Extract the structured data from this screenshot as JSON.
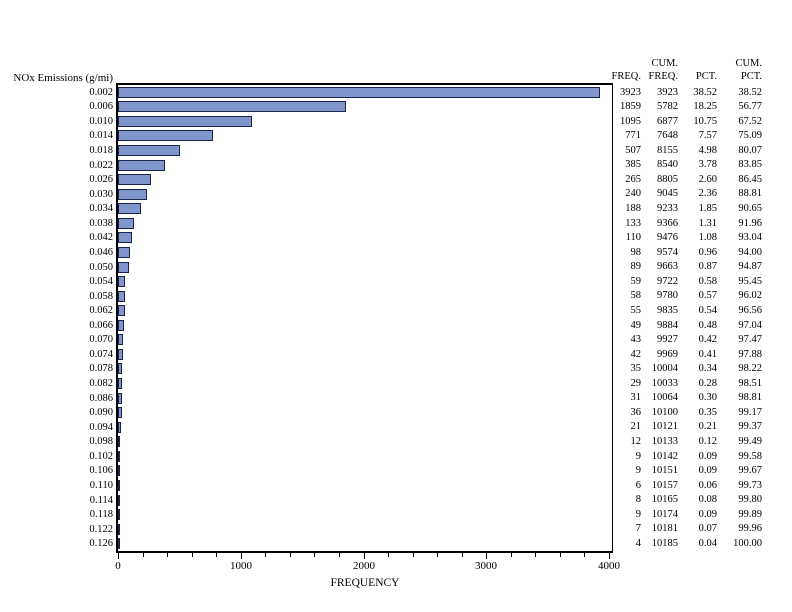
{
  "page": {
    "background": "#ffffff"
  },
  "chart_data": {
    "type": "bar",
    "orientation": "horizontal",
    "title": "",
    "ylabel": "NOx Emissions (g/mi)",
    "xlabel": "FREQUENCY",
    "categories": [
      "0.002",
      "0.006",
      "0.010",
      "0.014",
      "0.018",
      "0.022",
      "0.026",
      "0.030",
      "0.034",
      "0.038",
      "0.042",
      "0.046",
      "0.050",
      "0.054",
      "0.058",
      "0.062",
      "0.066",
      "0.070",
      "0.074",
      "0.078",
      "0.082",
      "0.086",
      "0.090",
      "0.094",
      "0.098",
      "0.102",
      "0.106",
      "0.110",
      "0.114",
      "0.118",
      "0.122",
      "0.126"
    ],
    "values": [
      3923,
      1859,
      1095,
      771,
      507,
      385,
      265,
      240,
      188,
      133,
      110,
      98,
      89,
      59,
      58,
      55,
      49,
      43,
      42,
      35,
      29,
      31,
      36,
      21,
      12,
      9,
      9,
      6,
      8,
      9,
      7,
      4
    ],
    "xlim": [
      0,
      4000
    ],
    "x_major_ticks": [
      0,
      1000,
      2000,
      3000,
      4000
    ],
    "x_minor_tick_step": 200,
    "grid": "off",
    "legend": "none",
    "bar_fill": "#8095cb",
    "bar_border": "#1b2349",
    "axis_color": "#000000"
  },
  "table": {
    "header_line1": [
      "",
      "CUM.",
      "",
      "CUM."
    ],
    "header_line2": [
      "FREQ.",
      "FREQ.",
      "PCT.",
      "PCT."
    ],
    "rows": [
      [
        "3923",
        "3923",
        "38.52",
        "38.52"
      ],
      [
        "1859",
        "5782",
        "18.25",
        "56.77"
      ],
      [
        "1095",
        "6877",
        "10.75",
        "67.52"
      ],
      [
        "771",
        "7648",
        "7.57",
        "75.09"
      ],
      [
        "507",
        "8155",
        "4.98",
        "80.07"
      ],
      [
        "385",
        "8540",
        "3.78",
        "83.85"
      ],
      [
        "265",
        "8805",
        "2.60",
        "86.45"
      ],
      [
        "240",
        "9045",
        "2.36",
        "88.81"
      ],
      [
        "188",
        "9233",
        "1.85",
        "90.65"
      ],
      [
        "133",
        "9366",
        "1.31",
        "91.96"
      ],
      [
        "110",
        "9476",
        "1.08",
        "93.04"
      ],
      [
        "98",
        "9574",
        "0.96",
        "94.00"
      ],
      [
        "89",
        "9663",
        "0.87",
        "94.87"
      ],
      [
        "59",
        "9722",
        "0.58",
        "95.45"
      ],
      [
        "58",
        "9780",
        "0.57",
        "96.02"
      ],
      [
        "55",
        "9835",
        "0.54",
        "96.56"
      ],
      [
        "49",
        "9884",
        "0.48",
        "97.04"
      ],
      [
        "43",
        "9927",
        "0.42",
        "97.47"
      ],
      [
        "42",
        "9969",
        "0.41",
        "97.88"
      ],
      [
        "35",
        "10004",
        "0.34",
        "98.22"
      ],
      [
        "29",
        "10033",
        "0.28",
        "98.51"
      ],
      [
        "31",
        "10064",
        "0.30",
        "98.81"
      ],
      [
        "36",
        "10100",
        "0.35",
        "99.17"
      ],
      [
        "21",
        "10121",
        "0.21",
        "99.37"
      ],
      [
        "12",
        "10133",
        "0.12",
        "99.49"
      ],
      [
        "9",
        "10142",
        "0.09",
        "99.58"
      ],
      [
        "9",
        "10151",
        "0.09",
        "99.67"
      ],
      [
        "6",
        "10157",
        "0.06",
        "99.73"
      ],
      [
        "8",
        "10165",
        "0.08",
        "99.80"
      ],
      [
        "9",
        "10174",
        "0.09",
        "99.89"
      ],
      [
        "7",
        "10181",
        "0.07",
        "99.96"
      ],
      [
        "4",
        "10185",
        "0.04",
        "100.00"
      ]
    ]
  }
}
